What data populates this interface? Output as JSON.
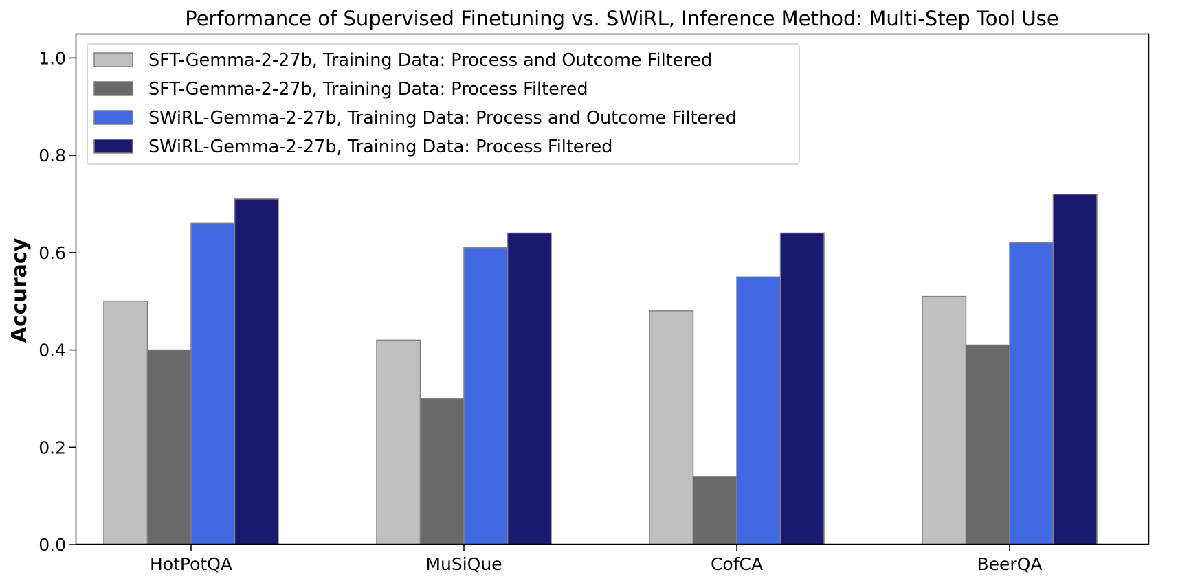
{
  "chart_data": {
    "type": "bar",
    "title": "Performance of Supervised Finetuning vs. SWiRL, Inference Method: Multi-Step Tool Use",
    "xlabel": "",
    "ylabel": "Accuracy",
    "ylim": [
      0,
      1.05
    ],
    "yticks": [
      0.0,
      0.2,
      0.4,
      0.6,
      0.8,
      1.0
    ],
    "ytick_labels": [
      "0.0",
      "0.2",
      "0.4",
      "0.6",
      "0.8",
      "1.0"
    ],
    "categories": [
      "HotPotQA",
      "MuSiQue",
      "CofCA",
      "BeerQA"
    ],
    "series": [
      {
        "name": "SFT-Gemma-2-27b, Training Data: Process and Outcome Filtered",
        "color": "#c0c0c0",
        "values": [
          0.5,
          0.42,
          0.48,
          0.51
        ]
      },
      {
        "name": "SFT-Gemma-2-27b, Training Data: Process Filtered",
        "color": "#696969",
        "values": [
          0.4,
          0.3,
          0.14,
          0.41
        ]
      },
      {
        "name": "SWiRL-Gemma-2-27b, Training Data: Process and Outcome Filtered",
        "color": "#4169e1",
        "values": [
          0.66,
          0.61,
          0.55,
          0.62
        ]
      },
      {
        "name": "SWiRL-Gemma-2-27b, Training Data: Process Filtered",
        "color": "#191970",
        "values": [
          0.71,
          0.64,
          0.64,
          0.72
        ]
      }
    ],
    "legend_position": "upper-left",
    "grid": false
  }
}
